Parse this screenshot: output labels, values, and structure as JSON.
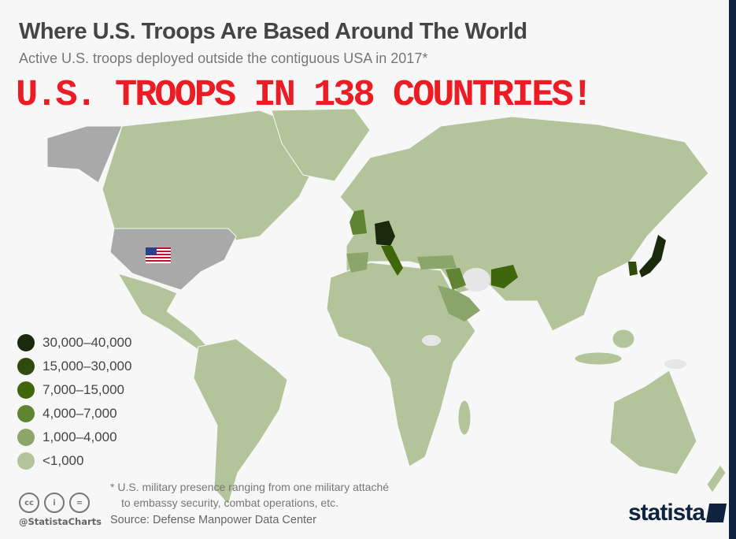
{
  "header": {
    "title": "Where U.S. Troops Are Based Around The World",
    "subtitle": "Active U.S. troops deployed outside the contiguous USA in 2017*",
    "overlay": "U.S. TROOPS IN 138 COUNTRIES!"
  },
  "legend": {
    "items": [
      {
        "label": "30,000–40,000",
        "color": "#1b2a0c"
      },
      {
        "label": "15,000–30,000",
        "color": "#2e4a0c"
      },
      {
        "label": "7,000–15,000",
        "color": "#3f660a"
      },
      {
        "label": "4,000–7,000",
        "color": "#5f8533"
      },
      {
        "label": "1,000–4,000",
        "color": "#8ca56a"
      },
      {
        "label": "<1,000",
        "color": "#b3c49a"
      }
    ]
  },
  "colors": {
    "home_country": "#a9a9a9",
    "no_data": "#e6e6e6",
    "background": "#f7f7f7",
    "overlay": "#ec1c24",
    "brand": "#0f2340"
  },
  "footer": {
    "footnote_line1": "* U.S. military presence ranging from one military attaché",
    "footnote_line2": "to embassy security, combat operations, etc.",
    "source": "Source: Defense Manpower Data Center",
    "handle": "@StatistaCharts",
    "license_icons": [
      "cc",
      "i",
      "="
    ],
    "brand": "statista"
  }
}
